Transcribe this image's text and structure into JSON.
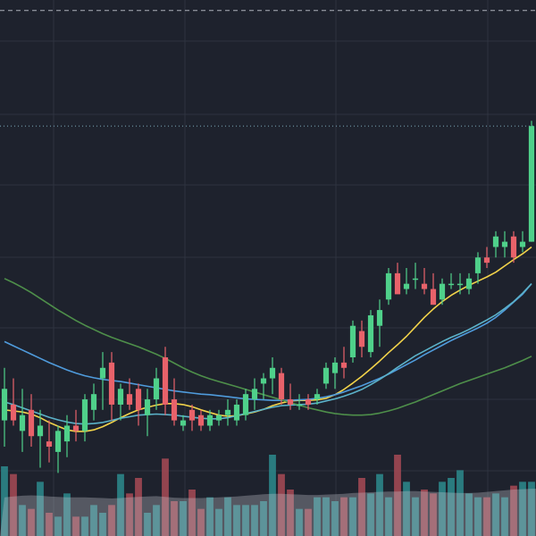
{
  "theme": {
    "background": "#1e222d",
    "grid": "#2e3340",
    "up": "#4fd08a",
    "down": "#e8626a",
    "volume_up": "#2d8b8e",
    "volume_down": "#a84a56",
    "volume_ma_fill": "#c9cbd3",
    "dashed_line": "#c8cbd4",
    "dotted_line": "#8ec4d6"
  },
  "chart_data": {
    "type": "candlestick",
    "grid": true,
    "reference_lines": [
      {
        "value": 100,
        "style": "dashed",
        "color": "#c8cbd4"
      },
      {
        "value": 78,
        "style": "dotted",
        "color": "#8ec4d6"
      }
    ],
    "ylim": [
      0,
      102
    ],
    "candles": [
      {
        "o": 22,
        "h": 32,
        "l": 17,
        "c": 28
      },
      {
        "o": 25,
        "h": 30,
        "l": 21,
        "c": 22
      },
      {
        "o": 20,
        "h": 28,
        "l": 16,
        "c": 23
      },
      {
        "o": 24,
        "h": 27,
        "l": 17,
        "c": 19
      },
      {
        "o": 19,
        "h": 24,
        "l": 13,
        "c": 21
      },
      {
        "o": 18,
        "h": 22,
        "l": 14,
        "c": 17
      },
      {
        "o": 16,
        "h": 21,
        "l": 12,
        "c": 20
      },
      {
        "o": 18,
        "h": 23,
        "l": 15,
        "c": 21
      },
      {
        "o": 21,
        "h": 24,
        "l": 18,
        "c": 20
      },
      {
        "o": 20,
        "h": 27,
        "l": 18,
        "c": 26
      },
      {
        "o": 24,
        "h": 29,
        "l": 22,
        "c": 27
      },
      {
        "o": 30,
        "h": 35,
        "l": 24,
        "c": 32
      },
      {
        "o": 33,
        "h": 35,
        "l": 22,
        "c": 25
      },
      {
        "o": 25,
        "h": 29,
        "l": 22,
        "c": 28
      },
      {
        "o": 27,
        "h": 30,
        "l": 24,
        "c": 25
      },
      {
        "o": 28,
        "h": 29,
        "l": 21,
        "c": 24
      },
      {
        "o": 23,
        "h": 28,
        "l": 19,
        "c": 26
      },
      {
        "o": 26,
        "h": 32,
        "l": 24,
        "c": 30
      },
      {
        "o": 34,
        "h": 36,
        "l": 23,
        "c": 25
      },
      {
        "o": 26,
        "h": 30,
        "l": 21,
        "c": 22
      },
      {
        "o": 21,
        "h": 23,
        "l": 20,
        "c": 22
      },
      {
        "o": 24,
        "h": 25,
        "l": 20,
        "c": 22
      },
      {
        "o": 23,
        "h": 24,
        "l": 20,
        "c": 21
      },
      {
        "o": 21,
        "h": 24,
        "l": 20,
        "c": 23
      },
      {
        "o": 22,
        "h": 24,
        "l": 21,
        "c": 23
      },
      {
        "o": 23,
        "h": 26,
        "l": 21,
        "c": 24
      },
      {
        "o": 22,
        "h": 26,
        "l": 21,
        "c": 25
      },
      {
        "o": 23,
        "h": 28,
        "l": 22,
        "c": 27
      },
      {
        "o": 26,
        "h": 30,
        "l": 24,
        "c": 28
      },
      {
        "o": 29,
        "h": 31,
        "l": 26,
        "c": 30
      },
      {
        "o": 30,
        "h": 34,
        "l": 27,
        "c": 32
      },
      {
        "o": 31,
        "h": 32,
        "l": 25,
        "c": 26
      },
      {
        "o": 26,
        "h": 29,
        "l": 24,
        "c": 25
      },
      {
        "o": 25,
        "h": 27,
        "l": 24,
        "c": 25
      },
      {
        "o": 26,
        "h": 27,
        "l": 24,
        "c": 25
      },
      {
        "o": 26,
        "h": 28,
        "l": 25,
        "c": 27
      },
      {
        "o": 29,
        "h": 33,
        "l": 28,
        "c": 32
      },
      {
        "o": 31,
        "h": 34,
        "l": 28,
        "c": 33
      },
      {
        "o": 33,
        "h": 36,
        "l": 30,
        "c": 32
      },
      {
        "o": 34,
        "h": 41,
        "l": 33,
        "c": 40
      },
      {
        "o": 39,
        "h": 41,
        "l": 34,
        "c": 36
      },
      {
        "o": 35,
        "h": 43,
        "l": 34,
        "c": 42
      },
      {
        "o": 40,
        "h": 45,
        "l": 36,
        "c": 43
      },
      {
        "o": 45,
        "h": 51,
        "l": 44,
        "c": 50
      },
      {
        "o": 50,
        "h": 52,
        "l": 47,
        "c": 46
      },
      {
        "o": 47,
        "h": 51,
        "l": 46,
        "c": 48
      },
      {
        "o": 49,
        "h": 52,
        "l": 47,
        "c": 49
      },
      {
        "o": 48,
        "h": 51,
        "l": 46,
        "c": 47
      },
      {
        "o": 47,
        "h": 50,
        "l": 44,
        "c": 44
      },
      {
        "o": 45,
        "h": 49,
        "l": 44,
        "c": 48
      },
      {
        "o": 48,
        "h": 50,
        "l": 47,
        "c": 48
      },
      {
        "o": 48,
        "h": 50,
        "l": 46,
        "c": 48
      },
      {
        "o": 47,
        "h": 50,
        "l": 46,
        "c": 49
      },
      {
        "o": 50,
        "h": 54,
        "l": 48,
        "c": 53
      },
      {
        "o": 53,
        "h": 55,
        "l": 51,
        "c": 52
      },
      {
        "o": 55,
        "h": 58,
        "l": 53,
        "c": 57
      },
      {
        "o": 55,
        "h": 58,
        "l": 53,
        "c": 56
      },
      {
        "o": 57,
        "h": 58,
        "l": 52,
        "c": 53
      },
      {
        "o": 55,
        "h": 58,
        "l": 54,
        "c": 56
      },
      {
        "o": 56,
        "h": 79,
        "l": 56,
        "c": 78
      }
    ],
    "moving_averages": [
      {
        "color": "#f2d34a",
        "values": [
          24.0,
          23.8,
          23.6,
          23.2,
          22.5,
          21.6,
          20.9,
          20.2,
          19.9,
          19.9,
          20.2,
          20.8,
          21.6,
          22.5,
          23.3,
          24.0,
          24.5,
          24.9,
          25.2,
          25.2,
          25.0,
          24.6,
          24.0,
          23.5,
          23.0,
          22.8,
          22.9,
          23.2,
          23.6,
          24.1,
          24.8,
          25.3,
          25.7,
          25.8,
          25.8,
          25.9,
          26.2,
          26.9,
          27.9,
          29.1,
          30.4,
          31.8,
          33.3,
          34.9,
          36.4,
          38.0,
          39.8,
          41.6,
          43.2,
          44.6,
          45.8,
          46.8,
          47.7,
          48.5,
          49.3,
          50.2,
          51.4,
          52.6,
          53.7,
          55.0
        ]
      },
      {
        "color": "#4f9bdc",
        "values": [
          37.0,
          36.2,
          35.4,
          34.6,
          33.8,
          33.0,
          32.3,
          31.6,
          31.0,
          30.5,
          30.1,
          29.8,
          29.6,
          29.4,
          29.1,
          28.8,
          28.5,
          28.2,
          27.9,
          27.6,
          27.4,
          27.2,
          27.0,
          26.9,
          26.7,
          26.5,
          26.3,
          26.1,
          26.0,
          25.9,
          25.8,
          25.8,
          25.8,
          25.9,
          26.0,
          26.2,
          26.5,
          26.9,
          27.4,
          28.0,
          28.6,
          29.3,
          30.0,
          30.8,
          31.7,
          32.6,
          33.5,
          34.5,
          35.4,
          36.3,
          37.2,
          38.0,
          38.8,
          39.6,
          40.5,
          41.6,
          43.0,
          44.5,
          46.0,
          48.0
        ]
      },
      {
        "color": "#5bb2c9",
        "values": [
          25.5,
          25.0,
          24.4,
          23.8,
          23.2,
          22.6,
          22.1,
          21.7,
          21.4,
          21.3,
          21.4,
          21.6,
          22.0,
          22.4,
          22.7,
          23.0,
          23.1,
          23.2,
          23.1,
          23.0,
          22.8,
          22.6,
          22.4,
          22.3,
          22.3,
          22.5,
          22.9,
          23.3,
          23.7,
          24.1,
          24.5,
          24.8,
          24.9,
          25.0,
          25.1,
          25.3,
          25.7,
          26.1,
          26.6,
          27.2,
          27.9,
          28.8,
          29.8,
          30.9,
          32.1,
          33.2,
          34.3,
          35.2,
          36.1,
          37.0,
          37.8,
          38.5,
          39.3,
          40.2,
          41.1,
          42.1,
          43.3,
          44.6,
          46.2,
          48.0
        ]
      },
      {
        "color": "#4e8f4a",
        "values": [
          49.0,
          48.2,
          47.3,
          46.3,
          45.2,
          44.1,
          43.0,
          42.0,
          41.0,
          40.1,
          39.3,
          38.5,
          37.8,
          37.2,
          36.6,
          36.0,
          35.3,
          34.6,
          33.8,
          32.9,
          32.0,
          31.2,
          30.5,
          29.9,
          29.4,
          28.9,
          28.4,
          27.9,
          27.4,
          26.9,
          26.4,
          25.9,
          25.4,
          24.9,
          24.4,
          24.0,
          23.6,
          23.3,
          23.1,
          23.0,
          23.0,
          23.1,
          23.4,
          23.8,
          24.3,
          24.9,
          25.5,
          26.2,
          26.9,
          27.6,
          28.3,
          29.0,
          29.6,
          30.2,
          30.8,
          31.4,
          32.0,
          32.7,
          33.4,
          34.2
        ]
      }
    ],
    "volume": {
      "ylim": [
        0,
        30
      ],
      "values": [
        18,
        16,
        8,
        7,
        14,
        6,
        5,
        11,
        5,
        5,
        8,
        6,
        8,
        16,
        11,
        15,
        6,
        8,
        20,
        9,
        9,
        12,
        7,
        10,
        7,
        10,
        8,
        8,
        8,
        9,
        21,
        16,
        12,
        7,
        7,
        10,
        10,
        9,
        10,
        10,
        15,
        11,
        16,
        10,
        21,
        14,
        10,
        12,
        11,
        14,
        15,
        17,
        11,
        10,
        10,
        11,
        10,
        13,
        14,
        14
      ],
      "ma": [
        10,
        10.2,
        10.4,
        10.5,
        10.4,
        10.2,
        10.1,
        10,
        10,
        10,
        9.9,
        9.8,
        9.7,
        9.8,
        10,
        10.1,
        10.2,
        10.3,
        10.1,
        9.9,
        9.8,
        9.8,
        9.8,
        9.9,
        10,
        10.1,
        10.2,
        10.4,
        10.6,
        10.8,
        10.9,
        10.9,
        10.8,
        10.7,
        10.6,
        10.6,
        10.7,
        10.8,
        10.9,
        11.1,
        11.2,
        11.3,
        11.4,
        11.5,
        11.5,
        11.6,
        11.6,
        11.5,
        11.4,
        11.3,
        11.2,
        11.1,
        11.1,
        11.2,
        11.4,
        11.6,
        11.8,
        12,
        12.1,
        12.2
      ]
    }
  }
}
